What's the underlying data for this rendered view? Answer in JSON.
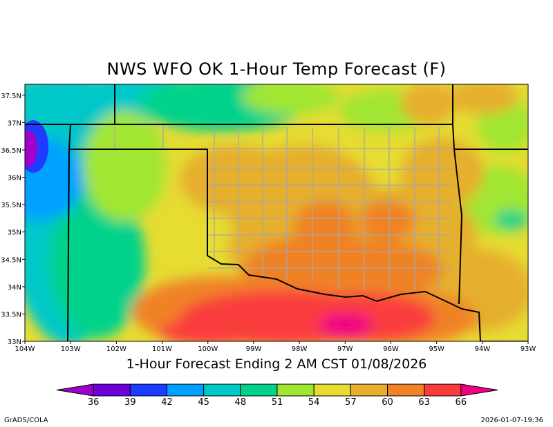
{
  "title": "NWS WFO OK 1-Hour Temp Forecast (F)",
  "subtitle": "1-Hour Forecast Ending 2 AM CST 01/08/2026",
  "footer": {
    "left": "GrADS/COLA",
    "right": "2026-01-07-19:36"
  },
  "map": {
    "lon_range": [
      -104,
      -93
    ],
    "lat_range": [
      33,
      37.7
    ],
    "x_ticks": [
      {
        "lon": -104,
        "label": "104W"
      },
      {
        "lon": -103,
        "label": "103W"
      },
      {
        "lon": -102,
        "label": "102W"
      },
      {
        "lon": -101,
        "label": "101W"
      },
      {
        "lon": -100,
        "label": "100W"
      },
      {
        "lon": -99,
        "label": "99W"
      },
      {
        "lon": -98,
        "label": "98W"
      },
      {
        "lon": -97,
        "label": "97W"
      },
      {
        "lon": -96,
        "label": "96W"
      },
      {
        "lon": -95,
        "label": "95W"
      },
      {
        "lon": -94,
        "label": "94W"
      },
      {
        "lon": -93,
        "label": "93W"
      }
    ],
    "y_ticks": [
      {
        "lat": 33,
        "label": "33N"
      },
      {
        "lat": 33.5,
        "label": "33.5N"
      },
      {
        "lat": 34,
        "label": "34N"
      },
      {
        "lat": 34.5,
        "label": "34.5N"
      },
      {
        "lat": 35,
        "label": "35N"
      },
      {
        "lat": 35.5,
        "label": "35.5N"
      },
      {
        "lat": 36,
        "label": "36N"
      },
      {
        "lat": 36.5,
        "label": "36.5N"
      },
      {
        "lat": 37,
        "label": "37N"
      },
      {
        "lat": 37.5,
        "label": "37.5N"
      }
    ]
  },
  "colorbar": {
    "levels": [
      "36",
      "39",
      "42",
      "45",
      "48",
      "51",
      "54",
      "57",
      "60",
      "63",
      "66"
    ],
    "colors": [
      "#a000c8",
      "#6e00dc",
      "#1e3cff",
      "#00a0ff",
      "#00c8c8",
      "#00d28c",
      "#a0e632",
      "#e6dc32",
      "#e6af2d",
      "#f08228",
      "#fa3c3c",
      "#f00082"
    ]
  }
}
